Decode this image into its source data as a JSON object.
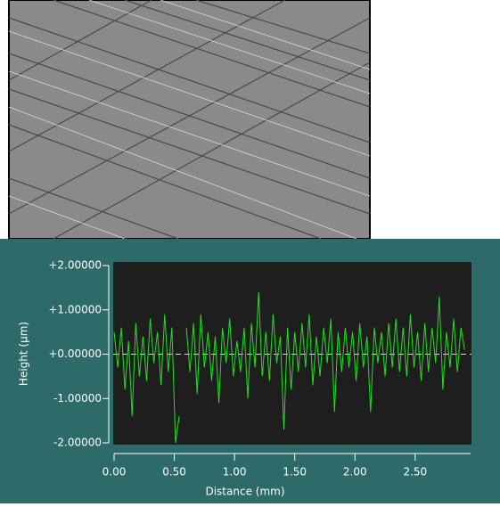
{
  "chart_data": {
    "type": "line",
    "xlabel": "Distance (mm)",
    "ylabel": "Height (µm)",
    "x": [
      0.0,
      0.03,
      0.06,
      0.09,
      0.12,
      0.15,
      0.18,
      0.21,
      0.24,
      0.27,
      0.3,
      0.33,
      0.36,
      0.39,
      0.42,
      0.45,
      0.48,
      0.51,
      0.54,
      0.57,
      0.6,
      0.63,
      0.66,
      0.69,
      0.72,
      0.75,
      0.78,
      0.81,
      0.84,
      0.87,
      0.9,
      0.93,
      0.96,
      0.99,
      1.02,
      1.05,
      1.08,
      1.11,
      1.14,
      1.17,
      1.2,
      1.23,
      1.26,
      1.29,
      1.32,
      1.35,
      1.38,
      1.41,
      1.44,
      1.47,
      1.5,
      1.53,
      1.56,
      1.59,
      1.62,
      1.65,
      1.68,
      1.71,
      1.74,
      1.77,
      1.8,
      1.83,
      1.86,
      1.89,
      1.92,
      1.95,
      1.98,
      2.01,
      2.04,
      2.07,
      2.1,
      2.13,
      2.16,
      2.19,
      2.22,
      2.25,
      2.28,
      2.31,
      2.34,
      2.37,
      2.4,
      2.43,
      2.46,
      2.49,
      2.52,
      2.55,
      2.58,
      2.61,
      2.64,
      2.67,
      2.7,
      2.73,
      2.76,
      2.79,
      2.82,
      2.85,
      2.88,
      2.91
    ],
    "series": [
      {
        "color": "#22e022",
        "values": [
          0.5,
          -0.3,
          0.6,
          -0.8,
          0.3,
          -1.4,
          0.7,
          -0.5,
          0.4,
          -0.6,
          0.8,
          -0.2,
          0.5,
          -0.7,
          0.9,
          -0.4,
          0.6,
          -2.0,
          -1.4,
          null,
          0.6,
          -0.4,
          0.7,
          -0.9,
          0.9,
          -0.3,
          0.5,
          -0.6,
          0.4,
          -1.1,
          0.6,
          -0.2,
          0.8,
          -0.5,
          0.3,
          -0.4,
          0.6,
          -1.0,
          0.7,
          -0.3,
          1.4,
          -0.5,
          0.5,
          -0.6,
          0.9,
          -0.2,
          0.4,
          -1.7,
          0.6,
          -0.8,
          0.5,
          -0.4,
          0.7,
          -0.3,
          0.9,
          -0.7,
          0.4,
          -0.5,
          0.6,
          -0.2,
          0.8,
          -1.3,
          0.5,
          -0.4,
          0.6,
          -0.3,
          0.5,
          -0.6,
          0.7,
          -0.3,
          0.4,
          -1.3,
          0.6,
          -0.2,
          0.5,
          -0.5,
          0.7,
          -0.3,
          0.8,
          -0.4,
          0.6,
          -0.5,
          0.9,
          -0.3,
          0.5,
          -0.6,
          0.7,
          -0.4,
          0.6,
          -0.2,
          1.3,
          -0.8,
          0.5,
          -0.3,
          0.8,
          -0.4,
          0.6,
          0.1
        ]
      }
    ],
    "xlim": [
      0,
      2.96
    ],
    "ylim": [
      -2,
      2
    ],
    "xticks": [
      {
        "value": 0,
        "label": "0.00"
      },
      {
        "value": 0.5,
        "label": "0.50"
      },
      {
        "value": 1,
        "label": "1.00"
      },
      {
        "value": 1.5,
        "label": "1.50"
      },
      {
        "value": 2,
        "label": "2.00"
      },
      {
        "value": 2.5,
        "label": "2.50"
      }
    ],
    "yticks": [
      {
        "value": 2,
        "label": "+2.00000"
      },
      {
        "value": 1,
        "label": "+1.00000"
      },
      {
        "value": 0,
        "label": "+0.00000"
      },
      {
        "value": -1,
        "label": "-1.00000"
      },
      {
        "value": -2,
        "label": "-2.00000"
      }
    ],
    "hline": 0
  }
}
